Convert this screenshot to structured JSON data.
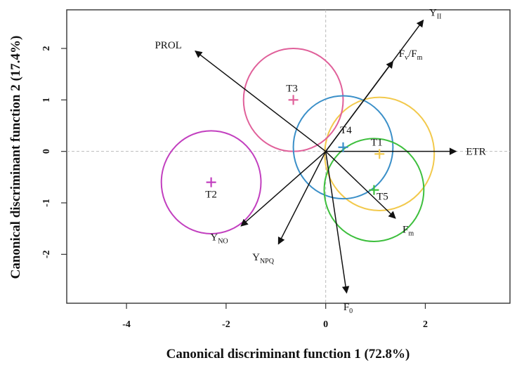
{
  "chart_data": {
    "type": "scatter",
    "xlabel": "Canonical discriminant function 1 (72.8%)",
    "ylabel": "Canonical discriminant function 2 (17.4%)",
    "xlim": [
      -5.2,
      3.7
    ],
    "ylim": [
      -2.95,
      2.75
    ],
    "xticks": [
      {
        "value": -4,
        "label": "-4"
      },
      {
        "value": -2,
        "label": "-2"
      },
      {
        "value": 0,
        "label": "0"
      },
      {
        "value": 2,
        "label": "2"
      }
    ],
    "yticks": [
      {
        "value": -2,
        "label": "-2"
      },
      {
        "value": -1,
        "label": "-1"
      },
      {
        "value": 0,
        "label": "0"
      },
      {
        "value": 1,
        "label": "1"
      },
      {
        "value": 2,
        "label": "2"
      }
    ],
    "reference_lines": {
      "x": 0,
      "y": 0,
      "style": "dashed"
    },
    "treatments": [
      {
        "name": "T1",
        "x": 1.08,
        "y": -0.05,
        "radius": 1.1,
        "color": "#f2c94c",
        "marker_color": "#f2c94c"
      },
      {
        "name": "T2",
        "x": -2.3,
        "y": -0.6,
        "radius": 1.0,
        "color": "#c23fbf",
        "marker_color": "#c23fbf"
      },
      {
        "name": "T3",
        "x": -0.65,
        "y": 1.0,
        "radius": 1.0,
        "color": "#e0609a",
        "marker_color": "#e0609a"
      },
      {
        "name": "T4",
        "x": 0.35,
        "y": 0.08,
        "radius": 1.0,
        "color": "#3a8fc8",
        "marker_color": "#3a8fc8"
      },
      {
        "name": "T5",
        "x": 0.97,
        "y": -0.75,
        "radius": 1.0,
        "color": "#3dbf3d",
        "marker_color": "#3dbf3d"
      }
    ],
    "vectors": [
      {
        "name": "Y",
        "sub": "II",
        "x": 1.96,
        "y": 2.55
      },
      {
        "name": "F",
        "sub": "v",
        "suffix": "/F",
        "suffix_sub": "m",
        "x": 1.35,
        "y": 1.75
      },
      {
        "name": "PROL",
        "sub": "",
        "x": -2.62,
        "y": 1.95
      },
      {
        "name": "ETR",
        "sub": "",
        "x": 2.62,
        "y": 0.0
      },
      {
        "name": "F",
        "sub": "m",
        "x": 1.4,
        "y": -1.3
      },
      {
        "name": "F",
        "sub": "0",
        "x": 0.42,
        "y": -2.75
      },
      {
        "name": "Y",
        "sub": "NO",
        "x": -1.7,
        "y": -1.45
      },
      {
        "name": "Y",
        "sub": "NPQ",
        "x": -0.95,
        "y": -1.8
      }
    ]
  }
}
